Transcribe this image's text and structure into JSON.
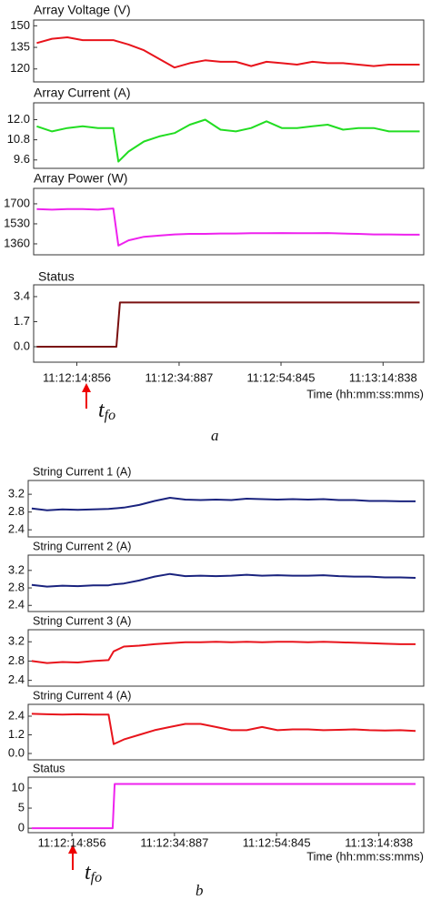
{
  "chart_data": [
    {
      "type": "line",
      "title": "Array Voltage (V)",
      "xlim": [
        726.4,
        802.8
      ],
      "ylim": [
        111,
        154
      ],
      "yticks": [
        150,
        135,
        120
      ],
      "x": [
        727,
        730,
        733,
        736,
        739,
        742,
        743,
        745,
        748,
        751,
        754,
        757,
        760,
        763,
        766,
        769,
        772,
        775,
        778,
        781,
        784,
        787,
        790,
        793,
        796,
        799,
        802
      ],
      "series": [
        {
          "name": "Array Voltage",
          "color": "#e8141c",
          "values": [
            138,
            141,
            142,
            140,
            140,
            140,
            139,
            137,
            133,
            127,
            121,
            124,
            126,
            125,
            125,
            122,
            125,
            124,
            123,
            125,
            124,
            124,
            123,
            122,
            123,
            123,
            123
          ]
        }
      ]
    },
    {
      "type": "line",
      "title": "Array Current (A)",
      "xlim": [
        726.4,
        802.8
      ],
      "ylim": [
        9.1,
        13.0
      ],
      "yticks": [
        {
          "value": 12,
          "label": "12.0"
        },
        10.8,
        9.6
      ],
      "x": [
        727,
        730,
        733,
        736,
        739,
        742,
        743,
        745,
        748,
        751,
        754,
        757,
        760,
        763,
        766,
        769,
        772,
        775,
        778,
        781,
        784,
        787,
        790,
        793,
        796,
        799,
        802
      ],
      "series": [
        {
          "name": "Array Current",
          "color": "#22dd22",
          "values": [
            11.6,
            11.3,
            11.5,
            11.6,
            11.5,
            11.5,
            9.5,
            10.1,
            10.7,
            11.0,
            11.2,
            11.7,
            12.0,
            11.4,
            11.3,
            11.5,
            11.9,
            11.5,
            11.5,
            11.6,
            11.7,
            11.4,
            11.5,
            11.5,
            11.3,
            11.3,
            11.3
          ]
        }
      ]
    },
    {
      "type": "line",
      "title": "Array Power (W)",
      "xlim": [
        726.4,
        802.8
      ],
      "ylim": [
        1267,
        1831
      ],
      "yticks": [
        1700,
        1530,
        1360
      ],
      "x": [
        727,
        730,
        733,
        736,
        739,
        742,
        743,
        745,
        748,
        751,
        754,
        757,
        760,
        763,
        766,
        769,
        772,
        775,
        778,
        781,
        784,
        787,
        790,
        793,
        796,
        799,
        802
      ],
      "series": [
        {
          "name": "Array Power",
          "color": "#ee22ee",
          "values": [
            1655,
            1650,
            1655,
            1655,
            1650,
            1660,
            1345,
            1390,
            1420,
            1430,
            1440,
            1445,
            1445,
            1448,
            1448,
            1450,
            1450,
            1452,
            1450,
            1450,
            1452,
            1448,
            1445,
            1440,
            1440,
            1438,
            1438
          ]
        }
      ]
    },
    {
      "type": "line",
      "title": "Status",
      "xlim": [
        726.4,
        802.8
      ],
      "ylim": [
        -1.05,
        4.2
      ],
      "yticks": [
        3.4,
        1.7,
        {
          "value": 0,
          "label": "0.0"
        }
      ],
      "xticks": [
        {
          "value": 734.856,
          "label": "11:12:14:856"
        },
        {
          "value": 754.887,
          "label": "11:12:34:887"
        },
        {
          "value": 774.845,
          "label": "11:12:54:845"
        },
        {
          "value": 794.838,
          "label": "11:13:14:838"
        }
      ],
      "xlabel": "Time (hh:mm:ss:mms)",
      "annotation": "t",
      "annotation_sub": "fo",
      "caption": "a",
      "x": [
        727,
        742.6,
        743.3,
        802
      ],
      "series": [
        {
          "name": "Status",
          "color": "#7a1010",
          "values": [
            0,
            0,
            3,
            3
          ]
        }
      ]
    },
    {
      "type": "line",
      "title": "String Current 1 (A)",
      "xlim": [
        726.3,
        803.6
      ],
      "ylim": [
        2.24,
        3.51
      ],
      "yticks": [
        3.2,
        2.8,
        2.4
      ],
      "x": [
        727,
        730,
        733,
        736,
        739,
        742,
        743,
        745,
        748,
        751,
        754,
        757,
        760,
        763,
        766,
        769,
        772,
        775,
        778,
        781,
        784,
        787,
        790,
        793,
        796,
        799,
        802
      ],
      "series": [
        {
          "name": "String Current 1",
          "color": "#1a237e",
          "values": [
            2.88,
            2.84,
            2.86,
            2.85,
            2.86,
            2.87,
            2.88,
            2.9,
            2.96,
            3.05,
            3.12,
            3.08,
            3.07,
            3.08,
            3.07,
            3.1,
            3.09,
            3.08,
            3.09,
            3.08,
            3.09,
            3.07,
            3.07,
            3.05,
            3.05,
            3.04,
            3.04
          ]
        }
      ]
    },
    {
      "type": "line",
      "title": "String Current 2 (A)",
      "xlim": [
        726.3,
        803.6
      ],
      "ylim": [
        2.26,
        3.55
      ],
      "yticks": [
        3.2,
        2.8,
        2.4
      ],
      "x": [
        727,
        730,
        733,
        736,
        739,
        742,
        743,
        745,
        748,
        751,
        754,
        757,
        760,
        763,
        766,
        769,
        772,
        775,
        778,
        781,
        784,
        787,
        790,
        793,
        796,
        799,
        802
      ],
      "series": [
        {
          "name": "String Current 2",
          "color": "#1a237e",
          "values": [
            2.87,
            2.83,
            2.85,
            2.84,
            2.86,
            2.86,
            2.88,
            2.9,
            2.97,
            3.06,
            3.12,
            3.07,
            3.08,
            3.07,
            3.08,
            3.1,
            3.08,
            3.09,
            3.08,
            3.08,
            3.09,
            3.07,
            3.06,
            3.06,
            3.04,
            3.04,
            3.03
          ]
        }
      ]
    },
    {
      "type": "line",
      "title": "String Current 3 (A)",
      "xlim": [
        726.3,
        803.6
      ],
      "ylim": [
        2.28,
        3.45
      ],
      "yticks": [
        3.2,
        2.8,
        2.4
      ],
      "x": [
        727,
        730,
        733,
        736,
        739,
        742,
        743,
        745,
        748,
        751,
        754,
        757,
        760,
        763,
        766,
        769,
        772,
        775,
        778,
        781,
        784,
        787,
        790,
        793,
        796,
        799,
        802
      ],
      "series": [
        {
          "name": "String Current 3",
          "color": "#e8141c",
          "values": [
            2.8,
            2.76,
            2.78,
            2.77,
            2.8,
            2.82,
            3.0,
            3.1,
            3.12,
            3.15,
            3.17,
            3.19,
            3.19,
            3.2,
            3.19,
            3.2,
            3.19,
            3.2,
            3.2,
            3.19,
            3.2,
            3.19,
            3.18,
            3.17,
            3.16,
            3.15,
            3.15
          ]
        }
      ]
    },
    {
      "type": "line",
      "title": "String Current 4 (A)",
      "xlim": [
        726.3,
        803.6
      ],
      "ylim": [
        -0.41,
        3.16
      ],
      "yticks": [
        2.4,
        1.2,
        {
          "value": 0,
          "label": "0.0"
        }
      ],
      "x": [
        727,
        730,
        733,
        736,
        739,
        742,
        743,
        745,
        748,
        751,
        754,
        757,
        760,
        763,
        766,
        769,
        772,
        775,
        778,
        781,
        784,
        787,
        790,
        793,
        796,
        799,
        802
      ],
      "series": [
        {
          "name": "String Current 4",
          "color": "#e8141c",
          "values": [
            2.55,
            2.52,
            2.5,
            2.52,
            2.5,
            2.5,
            0.6,
            0.9,
            1.2,
            1.5,
            1.7,
            1.9,
            1.9,
            1.7,
            1.5,
            1.5,
            1.7,
            1.5,
            1.55,
            1.55,
            1.5,
            1.52,
            1.55,
            1.5,
            1.48,
            1.5,
            1.45
          ]
        }
      ]
    },
    {
      "type": "line",
      "title": "Status",
      "xlim": [
        726.3,
        803.6
      ],
      "ylim": [
        -1.1,
        12.7
      ],
      "yticks": [
        10,
        5,
        0
      ],
      "xticks": [
        {
          "value": 734.856,
          "label": "11:12:14:856"
        },
        {
          "value": 754.887,
          "label": "11:12:34:887"
        },
        {
          "value": 774.845,
          "label": "11:12:54:845"
        },
        {
          "value": 794.838,
          "label": "11:13:14:838"
        }
      ],
      "xlabel": "Time (hh:mm:ss:mms)",
      "annotation": "t",
      "annotation_sub": "fo",
      "caption": "b",
      "x": [
        727,
        742.8,
        743.2,
        802
      ],
      "series": [
        {
          "name": "Status",
          "color": "#ee22ee",
          "values": [
            0,
            0,
            11,
            11
          ]
        }
      ]
    }
  ]
}
